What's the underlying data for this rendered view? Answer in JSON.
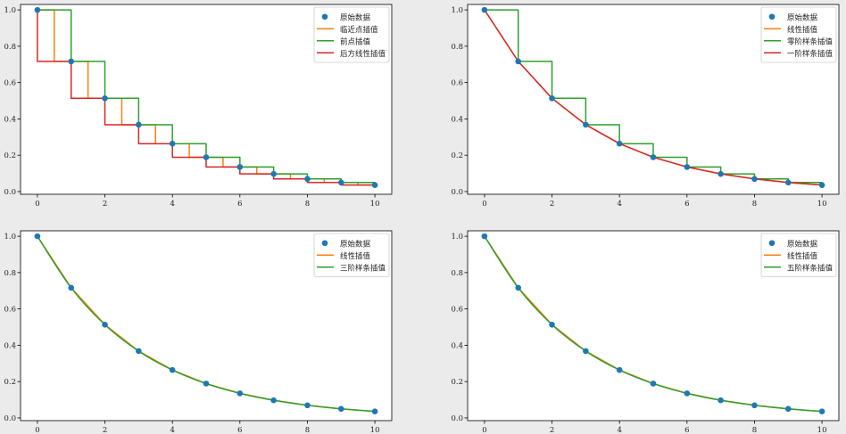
{
  "chart_data": [
    {
      "type": "line",
      "title": "",
      "xlabel": "",
      "ylabel": "",
      "xlim": [
        -0.5,
        10.5
      ],
      "ylim": [
        -0.015,
        1.03
      ],
      "xticks": [
        "0",
        "2",
        "4",
        "6",
        "8",
        "10"
      ],
      "yticks": [
        "0.0",
        "0.2",
        "0.4",
        "0.6",
        "0.8",
        "1.0"
      ],
      "grid": false,
      "legend_position": "top-right",
      "points": {
        "name": "原始数据",
        "color": "#1f77b4",
        "x": [
          0,
          1,
          2,
          3,
          4,
          5,
          6,
          7,
          8,
          9,
          10
        ],
        "y": [
          1.0,
          0.7165,
          0.5134,
          0.3679,
          0.2636,
          0.1889,
          0.1353,
          0.097,
          0.0695,
          0.0498,
          0.0357
        ]
      },
      "series": [
        {
          "name": "临近点插值",
          "color": "#ff7f0e",
          "kind": "nearest"
        },
        {
          "name": "前点插值",
          "color": "#2ca02c",
          "kind": "previous"
        },
        {
          "name": "后方线性插值",
          "color": "#d62728",
          "kind": "next"
        }
      ]
    },
    {
      "type": "line",
      "title": "",
      "xlabel": "",
      "ylabel": "",
      "xlim": [
        -0.5,
        10.5
      ],
      "ylim": [
        -0.015,
        1.03
      ],
      "xticks": [
        "0",
        "2",
        "4",
        "6",
        "8",
        "10"
      ],
      "yticks": [
        "0.0",
        "0.2",
        "0.4",
        "0.6",
        "0.8",
        "1.0"
      ],
      "grid": false,
      "legend_position": "top-right",
      "points": {
        "name": "原始数据",
        "color": "#1f77b4",
        "x": [
          0,
          1,
          2,
          3,
          4,
          5,
          6,
          7,
          8,
          9,
          10
        ],
        "y": [
          1.0,
          0.7165,
          0.5134,
          0.3679,
          0.2636,
          0.1889,
          0.1353,
          0.097,
          0.0695,
          0.0498,
          0.0357
        ]
      },
      "series": [
        {
          "name": "线性插值",
          "color": "#ff7f0e",
          "kind": "linear"
        },
        {
          "name": "零阶样条插值",
          "color": "#2ca02c",
          "kind": "previous"
        },
        {
          "name": "一阶样条插值",
          "color": "#d62728",
          "kind": "linear"
        }
      ]
    },
    {
      "type": "line",
      "title": "",
      "xlabel": "",
      "ylabel": "",
      "xlim": [
        -0.5,
        10.5
      ],
      "ylim": [
        -0.015,
        1.03
      ],
      "xticks": [
        "0",
        "2",
        "4",
        "6",
        "8",
        "10"
      ],
      "yticks": [
        "0.0",
        "0.2",
        "0.4",
        "0.6",
        "0.8",
        "1.0"
      ],
      "grid": false,
      "legend_position": "top-right",
      "points": {
        "name": "原始数据",
        "color": "#1f77b4",
        "x": [
          0,
          1,
          2,
          3,
          4,
          5,
          6,
          7,
          8,
          9,
          10
        ],
        "y": [
          1.0,
          0.7165,
          0.5134,
          0.3679,
          0.2636,
          0.1889,
          0.1353,
          0.097,
          0.0695,
          0.0498,
          0.0357
        ]
      },
      "series": [
        {
          "name": "线性插值",
          "color": "#ff7f0e",
          "kind": "linear"
        },
        {
          "name": "三阶样条插值",
          "color": "#2ca02c",
          "kind": "smooth"
        }
      ]
    },
    {
      "type": "line",
      "title": "",
      "xlabel": "",
      "ylabel": "",
      "xlim": [
        -0.5,
        10.5
      ],
      "ylim": [
        -0.015,
        1.03
      ],
      "xticks": [
        "0",
        "2",
        "4",
        "6",
        "8",
        "10"
      ],
      "yticks": [
        "0.0",
        "0.2",
        "0.4",
        "0.6",
        "0.8",
        "1.0"
      ],
      "grid": false,
      "legend_position": "top-right",
      "points": {
        "name": "原始数据",
        "color": "#1f77b4",
        "x": [
          0,
          1,
          2,
          3,
          4,
          5,
          6,
          7,
          8,
          9,
          10
        ],
        "y": [
          1.0,
          0.7165,
          0.5134,
          0.3679,
          0.2636,
          0.1889,
          0.1353,
          0.097,
          0.0695,
          0.0498,
          0.0357
        ]
      },
      "series": [
        {
          "name": "线性插值",
          "color": "#ff7f0e",
          "kind": "linear"
        },
        {
          "name": "五阶样条插值",
          "color": "#2ca02c",
          "kind": "smooth"
        }
      ]
    }
  ]
}
